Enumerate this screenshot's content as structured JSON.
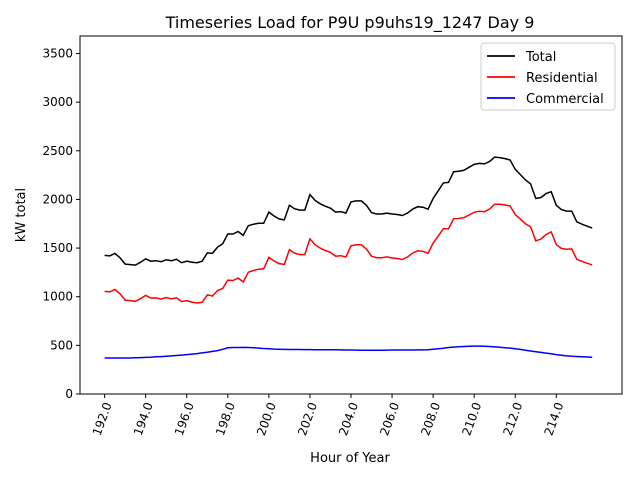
{
  "chart_data": {
    "type": "line",
    "title": "Timeseries Load for P9U p9uhs19_1247  Day 9",
    "xlabel": "Hour of Year",
    "ylabel": "kW total",
    "xlim": [
      190.8,
      217.2
    ],
    "ylim": [
      0,
      3680
    ],
    "xticks": [
      192,
      194,
      196,
      198,
      200,
      202,
      204,
      206,
      208,
      210,
      212,
      214
    ],
    "xtick_labels": [
      "192.0",
      "194.0",
      "196.0",
      "198.0",
      "200.0",
      "202.0",
      "204.0",
      "206.0",
      "208.0",
      "210.0",
      "212.0",
      "214.0"
    ],
    "yticks": [
      0,
      500,
      1000,
      1500,
      2000,
      2500,
      3000,
      3500
    ],
    "ytick_labels": [
      "0",
      "500",
      "1000",
      "1500",
      "2000",
      "2500",
      "3000",
      "3500"
    ],
    "grid": false,
    "legend_position": "top-right",
    "x_start": 192,
    "x_step": 0.25,
    "series": [
      {
        "name": "Total",
        "color": "#000000",
        "values": [
          1425,
          1420,
          1445,
          1400,
          1335,
          1330,
          1325,
          1355,
          1390,
          1365,
          1370,
          1360,
          1380,
          1370,
          1385,
          1350,
          1365,
          1355,
          1350,
          1365,
          1450,
          1445,
          1510,
          1545,
          1645,
          1645,
          1670,
          1630,
          1730,
          1745,
          1755,
          1755,
          1870,
          1830,
          1800,
          1790,
          1940,
          1905,
          1890,
          1890,
          2050,
          1990,
          1955,
          1930,
          1910,
          1870,
          1875,
          1860,
          1975,
          1985,
          1985,
          1940,
          1865,
          1850,
          1850,
          1860,
          1850,
          1845,
          1835,
          1860,
          1900,
          1925,
          1920,
          1900,
          2010,
          2090,
          2170,
          2175,
          2285,
          2290,
          2300,
          2330,
          2360,
          2370,
          2365,
          2390,
          2435,
          2430,
          2420,
          2405,
          2310,
          2255,
          2200,
          2160,
          2010,
          2020,
          2060,
          2080,
          1940,
          1895,
          1880,
          1880,
          1770,
          1745,
          1725,
          1705
        ]
      },
      {
        "name": "Residential",
        "color": "#ff0000",
        "values": [
          1055,
          1050,
          1075,
          1030,
          965,
          960,
          953,
          981,
          1014,
          987,
          988,
          976,
          992,
          978,
          989,
          950,
          960,
          945,
          935,
          943,
          1020,
          1007,
          1064,
          1085,
          1170,
          1167,
          1192,
          1151,
          1252,
          1269,
          1283,
          1287,
          1404,
          1368,
          1340,
          1332,
          1483,
          1448,
          1433,
          1434,
          1594,
          1535,
          1500,
          1475,
          1456,
          1416,
          1422,
          1408,
          1523,
          1534,
          1535,
          1490,
          1416,
          1401,
          1400,
          1409,
          1398,
          1393,
          1383,
          1408,
          1448,
          1472,
          1467,
          1446,
          1550,
          1625,
          1700,
          1697,
          1803,
          1804,
          1812,
          1840,
          1868,
          1878,
          1874,
          1902,
          1951,
          1950,
          1944,
          1933,
          1845,
          1797,
          1750,
          1718,
          1575,
          1592,
          1640,
          1666,
          1535,
          1497,
          1488,
          1492,
          1385,
          1363,
          1345,
          1327
        ]
      },
      {
        "name": "Commercial",
        "color": "#0000ff",
        "values": [
          370,
          370,
          370,
          370,
          370,
          370,
          372,
          374,
          376,
          378,
          382,
          384,
          388,
          392,
          396,
          400,
          405,
          410,
          415,
          422,
          430,
          438,
          446,
          460,
          475,
          478,
          478,
          479,
          478,
          476,
          472,
          468,
          466,
          462,
          460,
          458,
          457,
          457,
          457,
          456,
          456,
          455,
          455,
          455,
          454,
          454,
          453,
          452,
          452,
          451,
          450,
          450,
          449,
          449,
          450,
          451,
          452,
          452,
          452,
          452,
          452,
          453,
          453,
          454,
          460,
          465,
          470,
          478,
          482,
          486,
          488,
          490,
          492,
          492,
          491,
          488,
          484,
          480,
          476,
          472,
          465,
          458,
          450,
          442,
          435,
          428,
          420,
          414,
          405,
          398,
          392,
          388,
          385,
          382,
          380,
          378
        ]
      }
    ]
  }
}
